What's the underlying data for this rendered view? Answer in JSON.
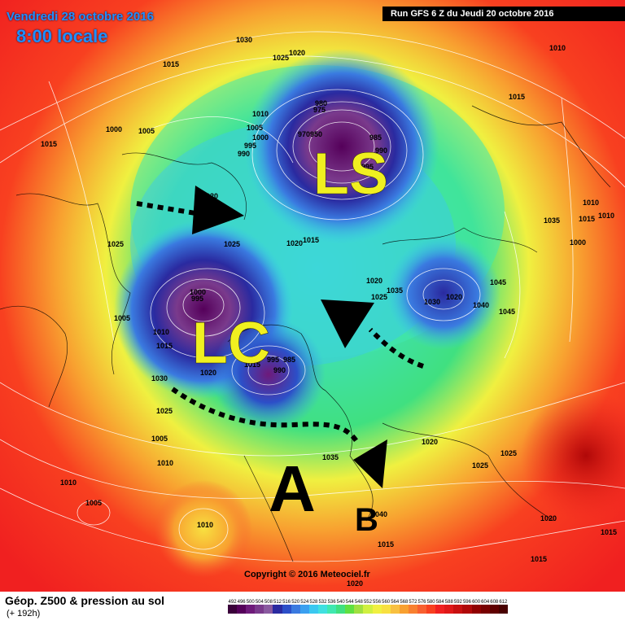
{
  "header": {
    "date": "Vendredi 28 octobre 2016",
    "time": "8:00 locale",
    "run": "Run GFS 6 Z du Jeudi 20 octobre 2016"
  },
  "footer": {
    "title": "Géop. Z500 & pression au sol",
    "subtitle": "(+ 192h)",
    "copyright": "Copyright © 2016 Meteociel.fr"
  },
  "annotations": {
    "ls": "LS",
    "lc": "LC",
    "a": "A",
    "b": "B"
  },
  "legend": {
    "values": [
      "492",
      "496",
      "500",
      "504",
      "508",
      "512",
      "516",
      "520",
      "524",
      "528",
      "532",
      "536",
      "540",
      "544",
      "548",
      "552",
      "556",
      "560",
      "564",
      "568",
      "572",
      "576",
      "580",
      "584",
      "588",
      "592",
      "596",
      "600",
      "604",
      "608",
      "612"
    ],
    "colors": [
      "#3a003a",
      "#55005a",
      "#6e1a7a",
      "#7a3a8c",
      "#8a5aa0",
      "#2a2aa0",
      "#2c4fc8",
      "#3a7ae0",
      "#3aa0f0",
      "#3ac8f0",
      "#40e0e0",
      "#40e8b0",
      "#40e080",
      "#60e040",
      "#a0e040",
      "#d0f040",
      "#f0f040",
      "#f8e040",
      "#f8c040",
      "#f8a030",
      "#f88030",
      "#f86030",
      "#f84020",
      "#f02020",
      "#e01818",
      "#c81010",
      "#b00808",
      "#900000",
      "#780000",
      "#600000",
      "#480000"
    ]
  },
  "isobars": [
    {
      "label": "1030",
      "pos": "top-center"
    },
    {
      "label": "1025",
      "pos": "top-center"
    },
    {
      "label": "1020",
      "pos": "top-center"
    },
    {
      "label": "1010",
      "pos": "top-right"
    },
    {
      "label": "1015",
      "pos": "upper-right"
    },
    {
      "label": "1015",
      "pos": "upper-left"
    },
    {
      "label": "1000",
      "pos": "upper-left"
    },
    {
      "label": "1005",
      "pos": "upper-left"
    },
    {
      "label": "1015",
      "pos": "left"
    },
    {
      "label": "1010",
      "pos": "center-left"
    },
    {
      "label": "1005",
      "pos": "center-left"
    },
    {
      "label": "1000",
      "pos": "center-left"
    },
    {
      "label": "995",
      "pos": "center-left"
    },
    {
      "label": "990",
      "pos": "center-left"
    },
    {
      "label": "980",
      "pos": "top-center"
    },
    {
      "label": "975",
      "pos": "top-center"
    },
    {
      "label": "970",
      "pos": "top-center"
    },
    {
      "label": "950",
      "pos": "top-center"
    },
    {
      "label": "985",
      "pos": "top-center"
    },
    {
      "label": "990",
      "pos": "top-center"
    },
    {
      "label": "995",
      "pos": "top-center"
    },
    {
      "label": "1020",
      "pos": "left"
    },
    {
      "label": "1020",
      "pos": "center"
    },
    {
      "label": "1015",
      "pos": "center"
    },
    {
      "label": "1025",
      "pos": "center-left"
    },
    {
      "label": "1025",
      "pos": "left"
    },
    {
      "label": "1005",
      "pos": "left"
    },
    {
      "label": "1000",
      "pos": "center-left"
    },
    {
      "label": "995",
      "pos": "center-left"
    },
    {
      "label": "1010",
      "pos": "center-left"
    },
    {
      "label": "1015",
      "pos": "center-left"
    },
    {
      "label": "1020",
      "pos": "center-left"
    },
    {
      "label": "1015",
      "pos": "center"
    },
    {
      "label": "995",
      "pos": "center"
    },
    {
      "label": "985",
      "pos": "center"
    },
    {
      "label": "990",
      "pos": "center"
    },
    {
      "label": "1030",
      "pos": "left"
    },
    {
      "label": "1025",
      "pos": "left"
    },
    {
      "label": "1005",
      "pos": "left"
    },
    {
      "label": "1010",
      "pos": "left"
    },
    {
      "label": "1010",
      "pos": "lower-left"
    },
    {
      "label": "1005",
      "pos": "lower-left"
    },
    {
      "label": "1010",
      "pos": "lower-center"
    },
    {
      "label": "1035",
      "pos": "lower-center"
    },
    {
      "label": "1020",
      "pos": "lower-center"
    },
    {
      "label": "1025",
      "pos": "lower-right"
    },
    {
      "label": "1025",
      "pos": "lower-right"
    },
    {
      "label": "1020",
      "pos": "lower-right"
    },
    {
      "label": "1015",
      "pos": "bottom-right"
    },
    {
      "label": "1015",
      "pos": "bottom-center"
    },
    {
      "label": "1020",
      "pos": "bottom-center"
    },
    {
      "label": "1020",
      "pos": "center-right"
    },
    {
      "label": "1035",
      "pos": "center-right"
    },
    {
      "label": "1025",
      "pos": "center-right"
    },
    {
      "label": "1030",
      "pos": "center-right"
    },
    {
      "label": "1020",
      "pos": "center-right"
    },
    {
      "label": "1040",
      "pos": "center-right"
    },
    {
      "label": "1045",
      "pos": "center-right"
    },
    {
      "label": "1045",
      "pos": "center-right"
    },
    {
      "label": "1035",
      "pos": "right"
    },
    {
      "label": "1015",
      "pos": "right"
    },
    {
      "label": "1010",
      "pos": "right"
    },
    {
      "label": "1010",
      "pos": "right"
    },
    {
      "label": "1000",
      "pos": "right"
    },
    {
      "label": "1015",
      "pos": "bottom-right"
    },
    {
      "label": "1040",
      "pos": "lower-center"
    }
  ]
}
